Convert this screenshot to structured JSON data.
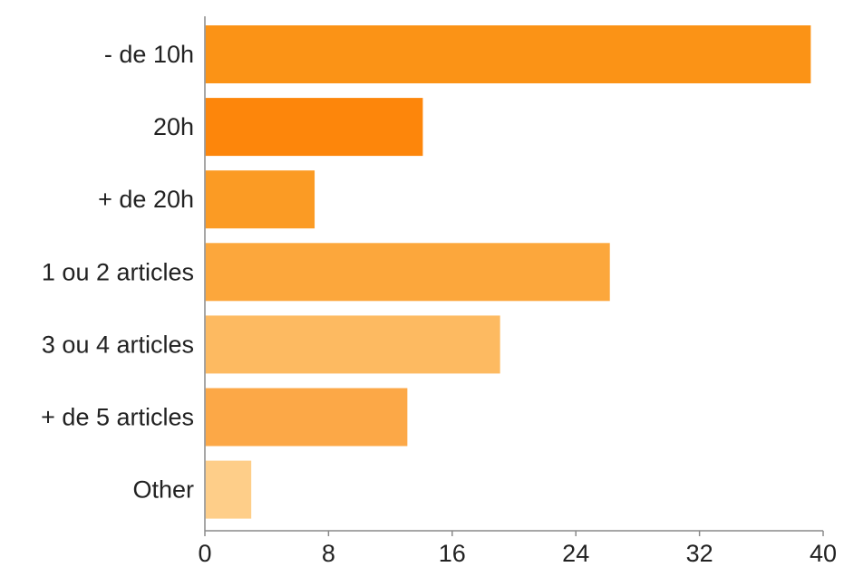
{
  "chart_data": {
    "type": "bar",
    "orientation": "horizontal",
    "categories": [
      "- de 10h",
      "20h",
      "+ de 20h",
      "1 ou 2 articles",
      "3 ou 4 articles",
      "+ de 5 articles",
      "Other"
    ],
    "values": [
      39.2,
      14.1,
      7.1,
      26.2,
      19.1,
      13.1,
      3.0
    ],
    "bar_colors": [
      "#fb9316",
      "#fd860b",
      "#fb9b24",
      "#fca73c",
      "#fdba61",
      "#fca847",
      "#fece89"
    ],
    "title": "",
    "xlabel": "",
    "ylabel": "",
    "xlim": [
      0,
      40
    ],
    "xticks": [
      0,
      8,
      16,
      24,
      32,
      40
    ],
    "grid": false,
    "legend": "none"
  },
  "colors": {
    "axis": "#8a8a8a",
    "text": "#222222",
    "background": "#ffffff"
  }
}
